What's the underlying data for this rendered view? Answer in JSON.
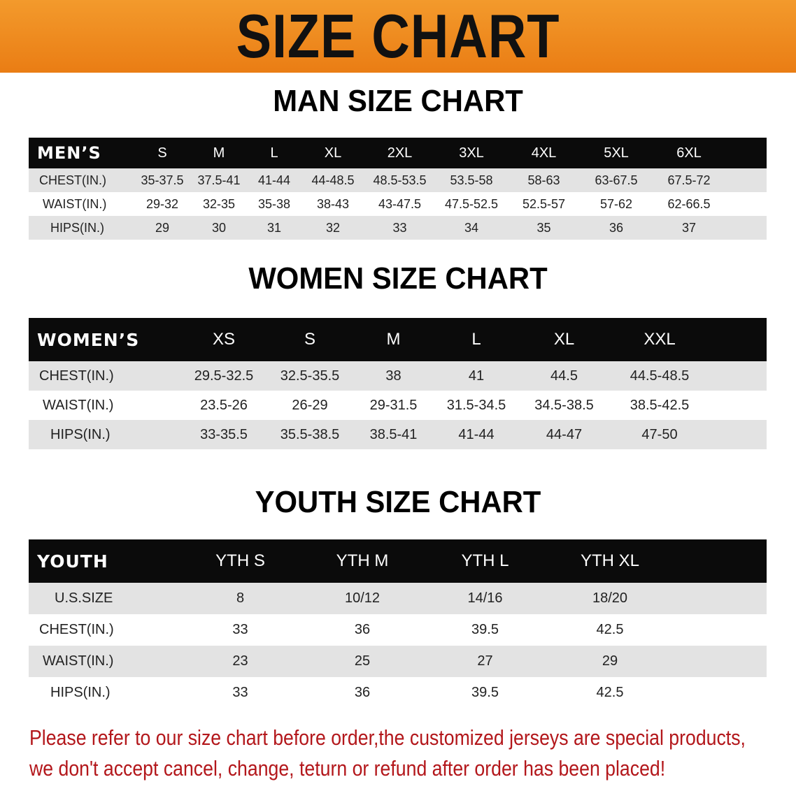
{
  "banner": {
    "title": "SIZE CHART",
    "color": "#ee8a1e"
  },
  "men": {
    "title": "MAN SIZE CHART",
    "header": [
      "MEN’S",
      "S",
      "M",
      "L",
      "XL",
      "2XL",
      "3XL",
      "4XL",
      "5XL",
      "6XL"
    ],
    "rows": [
      [
        "CHEST(IN.)",
        "35-37.5",
        "37.5-41",
        "41-44",
        "44-48.5",
        "48.5-53.5",
        "53.5-58",
        "58-63",
        "63-67.5",
        "67.5-72"
      ],
      [
        "WAIST(IN.)",
        "29-32",
        "32-35",
        "35-38",
        "38-43",
        "43-47.5",
        "47.5-52.5",
        "52.5-57",
        "57-62",
        "62-66.5"
      ],
      [
        "HIPS(IN.)",
        "29",
        "30",
        "31",
        "32",
        "33",
        "34",
        "35",
        "36",
        "37"
      ]
    ]
  },
  "women": {
    "title": "WOMEN SIZE CHART",
    "header": [
      "WOMEN’S",
      "XS",
      "S",
      "M",
      "L",
      "XL",
      "XXL"
    ],
    "rows": [
      [
        "CHEST(IN.)",
        "29.5-32.5",
        "32.5-35.5",
        "38",
        "41",
        "44.5",
        "44.5-48.5"
      ],
      [
        "WAIST(IN.)",
        "23.5-26",
        "26-29",
        "29-31.5",
        "31.5-34.5",
        "34.5-38.5",
        "38.5-42.5"
      ],
      [
        "HIPS(IN.)",
        "33-35.5",
        "35.5-38.5",
        "38.5-41",
        "41-44",
        "44-47",
        "47-50"
      ]
    ]
  },
  "youth": {
    "title": "YOUTH SIZE CHART",
    "header": [
      "YOUTH",
      "YTH S",
      "YTH M",
      "YTH L",
      "YTH XL"
    ],
    "rows": [
      [
        "U.S.SIZE",
        "8",
        "10/12",
        "14/16",
        "18/20"
      ],
      [
        "CHEST(IN.)",
        "33",
        "36",
        "39.5",
        "42.5"
      ],
      [
        "WAIST(IN.)",
        "23",
        "25",
        "27",
        "29"
      ],
      [
        "HIPS(IN.)",
        "33",
        "36",
        "39.5",
        "42.5"
      ]
    ]
  },
  "notice": {
    "line1": "Please refer to our size chart before order,the customized jerseys are special products,",
    "line2": "we don't accept cancel, change, teturn or refund after order has been placed!",
    "color": "#b3171b"
  }
}
